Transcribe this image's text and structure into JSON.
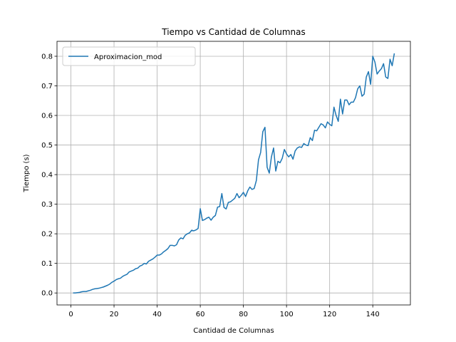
{
  "chart_data": {
    "type": "line",
    "title": "Tiempo vs Cantidad de Columnas",
    "x_label": "Cantidad de Columnas",
    "y_label": "Tiempo (s)",
    "x": [
      1,
      2,
      3,
      4,
      5,
      6,
      7,
      8,
      9,
      10,
      11,
      12,
      13,
      14,
      15,
      16,
      17,
      18,
      19,
      20,
      21,
      22,
      23,
      24,
      25,
      26,
      27,
      28,
      29,
      30,
      31,
      32,
      33,
      34,
      35,
      36,
      37,
      38,
      39,
      40,
      41,
      42,
      43,
      44,
      45,
      46,
      47,
      48,
      49,
      50,
      51,
      52,
      53,
      54,
      55,
      56,
      57,
      58,
      59,
      60,
      61,
      62,
      63,
      64,
      65,
      66,
      67,
      68,
      69,
      70,
      71,
      72,
      73,
      74,
      75,
      76,
      77,
      78,
      79,
      80,
      81,
      82,
      83,
      84,
      85,
      86,
      87,
      88,
      89,
      90,
      91,
      92,
      93,
      94,
      95,
      96,
      97,
      98,
      99,
      100,
      101,
      102,
      103,
      104,
      105,
      106,
      107,
      108,
      109,
      110,
      111,
      112,
      113,
      114,
      115,
      116,
      117,
      118,
      119,
      120,
      121,
      122,
      123,
      124,
      125,
      126,
      127,
      128,
      129,
      130,
      131,
      132,
      133,
      134,
      135,
      136,
      137,
      138,
      139,
      140,
      141,
      142,
      143,
      144,
      145,
      146,
      147,
      148,
      149,
      150
    ],
    "series": [
      {
        "name": "Aproximacion_mod",
        "color": "#1f77b4",
        "values": [
          0.0,
          0.0,
          0.001,
          0.002,
          0.004,
          0.005,
          0.005,
          0.007,
          0.009,
          0.012,
          0.014,
          0.015,
          0.016,
          0.018,
          0.02,
          0.023,
          0.026,
          0.03,
          0.036,
          0.04,
          0.045,
          0.048,
          0.05,
          0.056,
          0.06,
          0.063,
          0.071,
          0.074,
          0.077,
          0.082,
          0.084,
          0.091,
          0.094,
          0.1,
          0.098,
          0.107,
          0.111,
          0.115,
          0.121,
          0.128,
          0.128,
          0.132,
          0.139,
          0.144,
          0.15,
          0.161,
          0.161,
          0.159,
          0.163,
          0.179,
          0.186,
          0.183,
          0.195,
          0.2,
          0.203,
          0.212,
          0.21,
          0.213,
          0.218,
          0.285,
          0.245,
          0.248,
          0.253,
          0.256,
          0.246,
          0.256,
          0.262,
          0.29,
          0.292,
          0.336,
          0.289,
          0.284,
          0.306,
          0.308,
          0.314,
          0.32,
          0.336,
          0.322,
          0.33,
          0.34,
          0.326,
          0.345,
          0.358,
          0.35,
          0.353,
          0.38,
          0.45,
          0.475,
          0.545,
          0.56,
          0.425,
          0.405,
          0.46,
          0.49,
          0.412,
          0.445,
          0.44,
          0.455,
          0.485,
          0.47,
          0.46,
          0.468,
          0.452,
          0.48,
          0.49,
          0.494,
          0.492,
          0.505,
          0.5,
          0.498,
          0.525,
          0.515,
          0.55,
          0.548,
          0.56,
          0.572,
          0.568,
          0.558,
          0.578,
          0.57,
          0.565,
          0.628,
          0.6,
          0.58,
          0.655,
          0.605,
          0.652,
          0.652,
          0.636,
          0.645,
          0.645,
          0.66,
          0.69,
          0.7,
          0.665,
          0.672,
          0.73,
          0.748,
          0.705,
          0.8,
          0.78,
          0.74,
          0.75,
          0.758,
          0.775,
          0.73,
          0.725,
          0.79,
          0.768,
          0.81
        ]
      }
    ],
    "xlim": [
      -6.45,
      157.45
    ],
    "ylim": [
      -0.0405,
      0.8505
    ],
    "xticks": [
      0,
      20,
      40,
      60,
      80,
      100,
      120,
      140
    ],
    "yticks": [
      {
        "value": 0,
        "label": "0.0"
      },
      0.1,
      0.2,
      0.3,
      0.4,
      0.5,
      0.6,
      0.7,
      0.8
    ],
    "grid": true,
    "legend": "upper left"
  }
}
